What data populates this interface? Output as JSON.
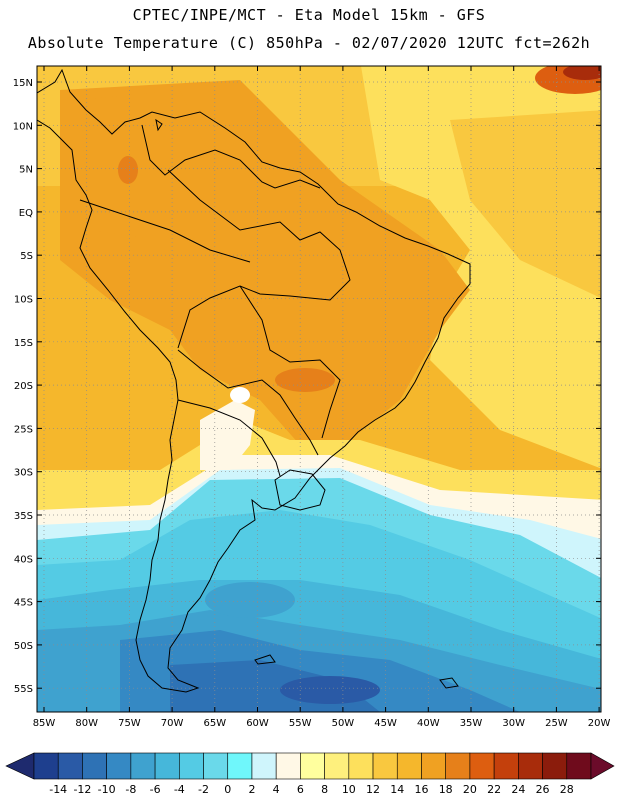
{
  "header": {
    "line1": "CPTEC/INPE/MCT  -   Eta Model 15km  -  GFS",
    "line2": "Absolute Temperature (C) 850hPa - 02/07/2020 12UTC fct=262h"
  },
  "lat_labels": [
    "15N",
    "10N",
    "5N",
    "EQ",
    "5S",
    "10S",
    "15S",
    "20S",
    "25S",
    "30S",
    "35S",
    "40S",
    "45S",
    "50S",
    "55S"
  ],
  "lon_labels": [
    "85W",
    "80W",
    "75W",
    "70W",
    "65W",
    "60W",
    "55W",
    "50W",
    "45W",
    "40W",
    "35W",
    "30W",
    "25W",
    "20W"
  ],
  "colorbar": {
    "labels": [
      "-14",
      "-12",
      "-10",
      "-8",
      "-6",
      "-4",
      "-2",
      "0",
      "2",
      "4",
      "6",
      "8",
      "10",
      "12",
      "14",
      "16",
      "18",
      "20",
      "22",
      "24",
      "26",
      "28"
    ],
    "colors": [
      "#1e3f8e",
      "#2a5aa6",
      "#2e72b5",
      "#3589c4",
      "#3fa2cf",
      "#46b7da",
      "#54cbe4",
      "#6ad9ea",
      "#6ff7fb",
      "#cff5fc",
      "#fff8e6",
      "#ffff9e",
      "#fef07d",
      "#fde05c",
      "#f9c83f",
      "#f5b72c",
      "#f0a122",
      "#e6801a",
      "#dd5e10",
      "#c4400c",
      "#a82c0b",
      "#8b1c0c",
      "#6f0b1c"
    ],
    "left_arrow_color": "#1e2a6e",
    "right_arrow_color": "#6b0b2a"
  }
}
